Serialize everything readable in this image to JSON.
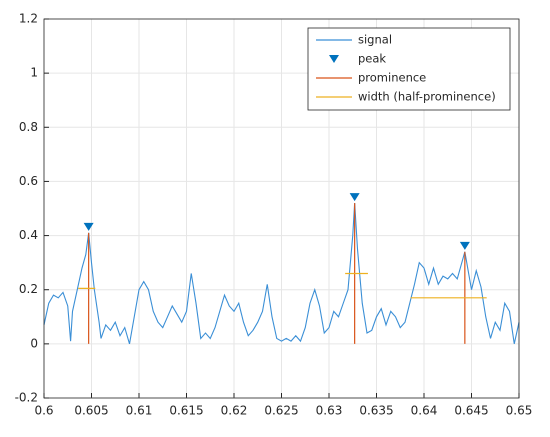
{
  "chart_data": {
    "type": "line",
    "xlim": [
      0.6,
      0.65
    ],
    "ylim": [
      -0.2,
      1.2
    ],
    "xticks": [
      0.6,
      0.605,
      0.61,
      0.615,
      0.62,
      0.625,
      0.63,
      0.635,
      0.64,
      0.645,
      0.65
    ],
    "yticks": [
      -0.2,
      0,
      0.2,
      0.4,
      0.6,
      0.8,
      1,
      1.2
    ],
    "grid": true,
    "legend": "top-right",
    "series": [
      {
        "name": "signal",
        "kind": "line",
        "color": "#3b8fd6",
        "x": [
          0.6,
          0.6005,
          0.601,
          0.6015,
          0.602,
          0.6025,
          0.6028,
          0.603,
          0.6035,
          0.604,
          0.6044,
          0.6047,
          0.605,
          0.6053,
          0.6058,
          0.606,
          0.6065,
          0.607,
          0.6075,
          0.608,
          0.6085,
          0.609,
          0.6095,
          0.61,
          0.6105,
          0.611,
          0.6115,
          0.612,
          0.6125,
          0.613,
          0.6135,
          0.614,
          0.6145,
          0.615,
          0.6155,
          0.616,
          0.6165,
          0.617,
          0.6175,
          0.618,
          0.6185,
          0.619,
          0.6195,
          0.62,
          0.6205,
          0.621,
          0.6215,
          0.622,
          0.6225,
          0.623,
          0.6235,
          0.624,
          0.6245,
          0.625,
          0.6255,
          0.626,
          0.6265,
          0.627,
          0.6275,
          0.628,
          0.6285,
          0.629,
          0.6295,
          0.63,
          0.6305,
          0.631,
          0.6315,
          0.632,
          0.6325,
          0.6327,
          0.633,
          0.6335,
          0.634,
          0.6345,
          0.635,
          0.6355,
          0.636,
          0.6365,
          0.637,
          0.6375,
          0.638,
          0.6385,
          0.639,
          0.6395,
          0.64,
          0.6405,
          0.641,
          0.6415,
          0.642,
          0.6425,
          0.643,
          0.6435,
          0.6443,
          0.645,
          0.6455,
          0.646,
          0.6465,
          0.647,
          0.6475,
          0.648,
          0.6485,
          0.649,
          0.6495,
          0.65
        ],
        "values": [
          0.07,
          0.15,
          0.18,
          0.17,
          0.19,
          0.14,
          0.01,
          0.12,
          0.2,
          0.28,
          0.33,
          0.41,
          0.3,
          0.2,
          0.08,
          0.02,
          0.07,
          0.05,
          0.08,
          0.03,
          0.06,
          0.0,
          0.1,
          0.2,
          0.23,
          0.2,
          0.12,
          0.08,
          0.06,
          0.1,
          0.14,
          0.11,
          0.08,
          0.12,
          0.26,
          0.15,
          0.02,
          0.04,
          0.02,
          0.06,
          0.12,
          0.18,
          0.14,
          0.12,
          0.15,
          0.08,
          0.03,
          0.05,
          0.08,
          0.12,
          0.22,
          0.1,
          0.02,
          0.01,
          0.02,
          0.01,
          0.03,
          0.01,
          0.06,
          0.15,
          0.2,
          0.14,
          0.04,
          0.06,
          0.12,
          0.1,
          0.15,
          0.2,
          0.4,
          0.52,
          0.35,
          0.15,
          0.04,
          0.05,
          0.1,
          0.13,
          0.07,
          0.12,
          0.1,
          0.06,
          0.08,
          0.15,
          0.22,
          0.3,
          0.28,
          0.22,
          0.28,
          0.22,
          0.25,
          0.24,
          0.26,
          0.24,
          0.34,
          0.2,
          0.27,
          0.21,
          0.1,
          0.02,
          0.08,
          0.05,
          0.15,
          0.12,
          0.0,
          0.08
        ]
      },
      {
        "name": "peak",
        "kind": "marker",
        "color": "#0072bd",
        "x": [
          0.6047,
          0.6327,
          0.6443
        ],
        "values": [
          0.41,
          0.52,
          0.34
        ]
      },
      {
        "name": "prominence",
        "kind": "vline",
        "color": "#d95319",
        "x": [
          0.6047,
          0.6327,
          0.6443
        ],
        "values": [
          0.41,
          0.52,
          0.34
        ],
        "bases": [
          0,
          0,
          0
        ]
      },
      {
        "name": "width (half-prominence)",
        "kind": "hline",
        "color": "#edb120",
        "values": [
          0.205,
          0.26,
          0.17
        ],
        "x_start": [
          0.6036,
          0.6317,
          0.6386
        ],
        "x_end": [
          0.6054,
          0.6341,
          0.6466
        ]
      }
    ]
  }
}
